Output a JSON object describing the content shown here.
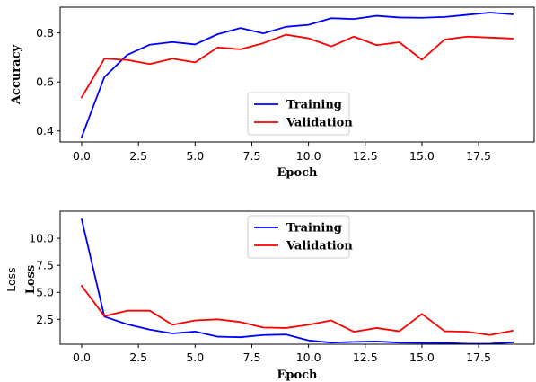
{
  "chart_data": [
    {
      "type": "line",
      "title": "",
      "xlabel": "Epoch",
      "ylabel": "Accuracy",
      "xlim": [
        -0.95,
        19.95
      ],
      "ylim": [
        0.355,
        0.905
      ],
      "xticks": [
        0.0,
        2.5,
        5.0,
        7.5,
        10.0,
        12.5,
        15.0,
        17.5
      ],
      "xtick_labels": [
        "0.0",
        "2.5",
        "5.0",
        "7.5",
        "10.0",
        "12.5",
        "15.0",
        "17.5"
      ],
      "yticks": [
        0.4,
        0.6,
        0.8
      ],
      "ytick_labels": [
        "0.4",
        "0.6",
        "0.8"
      ],
      "legend_position": "lower-center",
      "x": [
        0,
        1,
        2,
        3,
        4,
        5,
        6,
        7,
        8,
        9,
        10,
        11,
        12,
        13,
        14,
        15,
        16,
        17,
        18,
        19
      ],
      "series": [
        {
          "name": "Training",
          "color": "#0000ff",
          "values": [
            0.375,
            0.62,
            0.71,
            0.752,
            0.763,
            0.753,
            0.795,
            0.82,
            0.798,
            0.825,
            0.833,
            0.86,
            0.857,
            0.87,
            0.863,
            0.862,
            0.865,
            0.874,
            0.883,
            0.876
          ]
        },
        {
          "name": "Validation",
          "color": "#ff0000",
          "values": [
            0.537,
            0.695,
            0.69,
            0.673,
            0.695,
            0.68,
            0.741,
            0.733,
            0.758,
            0.793,
            0.778,
            0.745,
            0.785,
            0.75,
            0.762,
            0.691,
            0.773,
            0.785,
            0.781,
            0.777
          ]
        }
      ]
    },
    {
      "type": "line",
      "title": "",
      "xlabel": "Epoch",
      "ylabel": "Loss",
      "ylabel_overlay": "Loss",
      "xlim": [
        -0.95,
        19.95
      ],
      "ylim": [
        0.2,
        12.5
      ],
      "xticks": [
        0.0,
        2.5,
        5.0,
        7.5,
        10.0,
        12.5,
        15.0,
        17.5
      ],
      "xtick_labels": [
        "0.0",
        "2.5",
        "5.0",
        "7.5",
        "10.0",
        "12.5",
        "15.0",
        "17.5"
      ],
      "yticks": [
        2.5,
        5.0,
        7.5,
        10.0
      ],
      "ytick_labels": [
        "2.5",
        "5.0",
        "7.5",
        "10.0"
      ],
      "legend_position": "upper-center",
      "x": [
        0,
        1,
        2,
        3,
        4,
        5,
        6,
        7,
        8,
        9,
        10,
        11,
        12,
        13,
        14,
        15,
        16,
        17,
        18,
        19
      ],
      "series": [
        {
          "name": "Training",
          "color": "#0000ff",
          "values": [
            11.75,
            2.75,
            2.05,
            1.55,
            1.2,
            1.37,
            0.9,
            0.85,
            1.05,
            1.1,
            0.55,
            0.35,
            0.42,
            0.46,
            0.35,
            0.33,
            0.32,
            0.24,
            0.25,
            0.37
          ]
        },
        {
          "name": "Validation",
          "color": "#ff0000",
          "values": [
            5.6,
            2.8,
            3.3,
            3.3,
            2.0,
            2.4,
            2.5,
            2.25,
            1.75,
            1.7,
            2.0,
            2.4,
            1.35,
            1.7,
            1.4,
            3.0,
            1.4,
            1.35,
            1.05,
            1.45
          ]
        }
      ]
    }
  ]
}
